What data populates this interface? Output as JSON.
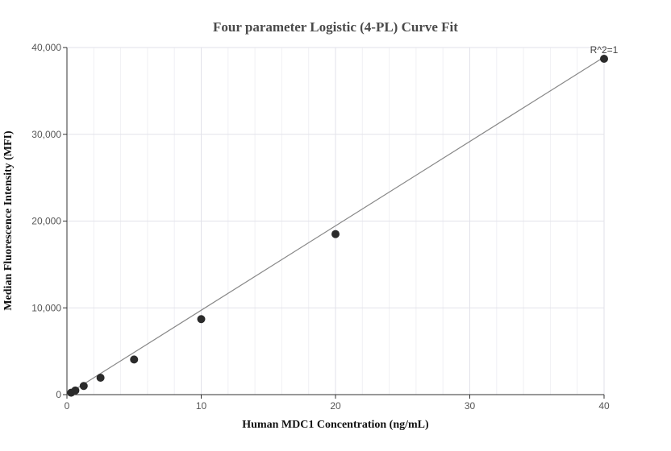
{
  "chart_data": {
    "type": "scatter",
    "title": "Four parameter Logistic (4-PL) Curve Fit",
    "xlabel": "Human MDC1 Concentration (ng/mL)",
    "ylabel": "Median Fluorescence Intensity (MFI)",
    "xlim": [
      0,
      40
    ],
    "ylim": [
      0,
      40000
    ],
    "x_ticks": [
      0,
      10,
      20,
      30,
      40
    ],
    "x_tick_labels": [
      "0",
      "10",
      "20",
      "30",
      "40"
    ],
    "y_ticks": [
      0,
      10000,
      20000,
      30000,
      40000
    ],
    "y_tick_labels": [
      "0",
      "10,000",
      "20,000",
      "30,000",
      "40,000"
    ],
    "grid": true,
    "annotation": "R^2=1",
    "series": [
      {
        "type": "scatter",
        "color": "#2b2b2b",
        "x": [
          0.3125,
          0.625,
          1.25,
          2.5,
          5,
          10,
          20,
          40
        ],
        "y": [
          220,
          480,
          1000,
          1950,
          4050,
          8700,
          18500,
          38700
        ]
      },
      {
        "type": "line",
        "color": "#888888",
        "x": [
          0,
          40
        ],
        "y": [
          0,
          38900
        ]
      }
    ]
  }
}
